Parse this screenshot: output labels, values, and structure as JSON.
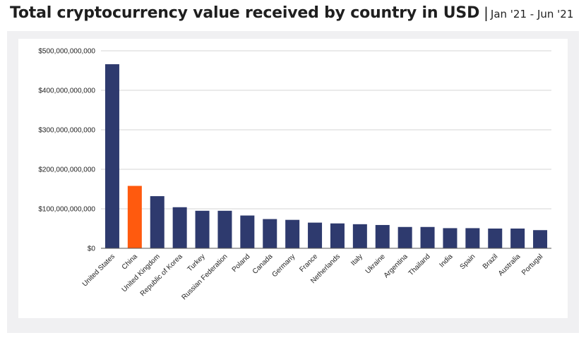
{
  "header": {
    "title": "Total cryptocurrency value received by country in USD",
    "separator": "|",
    "subtitle": "Jan '21 - Jun '21"
  },
  "colors": {
    "bar_default": "#2e3a6e",
    "bar_highlight": "#ff5a0e",
    "grid": "#d6d6d6",
    "axis": "#555555",
    "text": "#222222",
    "panel_background": "#f0f0f2"
  },
  "chart_data": {
    "type": "bar",
    "title": "Total cryptocurrency value received by country in USD",
    "subtitle": "Jan '21 - Jun '21",
    "xlabel": "",
    "ylabel": "",
    "ylim": [
      0,
      500000000000
    ],
    "yticks": [
      0,
      100000000000,
      200000000000,
      300000000000,
      400000000000,
      500000000000
    ],
    "ytick_labels": [
      "$0",
      "$100,000,000,000",
      "$200,000,000,000",
      "$300,000,000,000",
      "$400,000,000,000",
      "$500,000,000,000"
    ],
    "grid": true,
    "legend": "none",
    "highlight_category": "China",
    "categories": [
      "United States",
      "China",
      "United Kingdom",
      "Republic of Korea",
      "Turkey",
      "Russian Federation",
      "Poland",
      "Canada",
      "Germany",
      "France",
      "Netherlands",
      "Italy",
      "Ukraine",
      "Argentina",
      "Thailand",
      "India",
      "Spain",
      "Brazil",
      "Australia",
      "Portugal"
    ],
    "values": [
      466000000000,
      158000000000,
      132000000000,
      104000000000,
      95000000000,
      95000000000,
      83000000000,
      74000000000,
      72000000000,
      65000000000,
      63000000000,
      61000000000,
      59000000000,
      54000000000,
      54000000000,
      51000000000,
      51000000000,
      50000000000,
      50000000000,
      46000000000
    ]
  }
}
